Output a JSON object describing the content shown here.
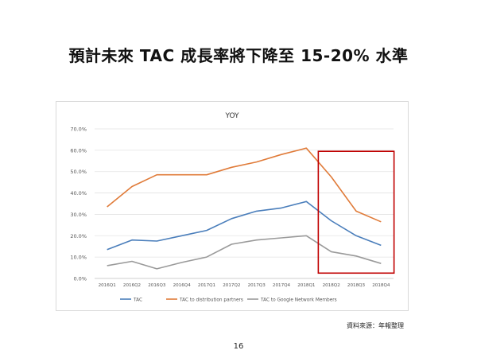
{
  "slide": {
    "title": "預計未來 TAC 成長率將下降至 15-20% 水準",
    "source": "資料來源：年報整理",
    "page_number": "16"
  },
  "chart_data": {
    "type": "line",
    "title": "YOY",
    "categories": [
      "2016Q1",
      "2016Q2",
      "2016Q3",
      "2016Q4",
      "2017Q1",
      "2017Q2",
      "2017Q3",
      "2017Q4",
      "2018Q1",
      "2018Q2",
      "2018Q3",
      "2018Q4"
    ],
    "y_tick_labels": [
      "0.0%",
      "10.0%",
      "20.0%",
      "30.0%",
      "40.0%",
      "50.0%",
      "60.0%",
      "70.0%"
    ],
    "ylim": [
      0,
      70
    ],
    "grid": true,
    "legend_position": "bottom",
    "series": [
      {
        "name": "TAC",
        "color": "#4a7ebb",
        "values": [
          13.5,
          18,
          17.5,
          20,
          22.5,
          28,
          31.5,
          33,
          36,
          27,
          20,
          15.5
        ]
      },
      {
        "name": "TAC to distribution partners",
        "color": "#e07b39",
        "values": [
          33.5,
          43,
          48.5,
          48.5,
          48.5,
          52,
          54.5,
          58,
          61,
          47.5,
          31.5,
          26.5
        ]
      },
      {
        "name": "TAC to Google Network Members",
        "color": "#9a9a9a",
        "values": [
          6,
          8,
          4.5,
          7.5,
          10,
          16,
          18,
          19,
          20,
          12.5,
          10.5,
          7
        ]
      }
    ],
    "highlight": {
      "from_category": "2018Q2",
      "to_category": "2018Q4",
      "color": "#c00000"
    }
  }
}
